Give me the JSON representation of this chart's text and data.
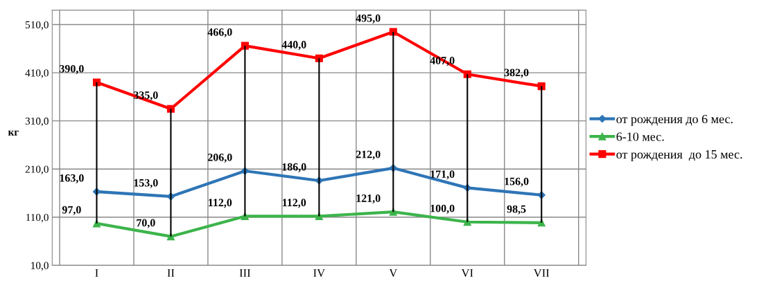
{
  "chart_data": {
    "type": "line",
    "ylabel": "кг",
    "categories": [
      "I",
      "II",
      "III",
      "IV",
      "V",
      "VI",
      "VII"
    ],
    "ylim": [
      10,
      540
    ],
    "yticks": [
      {
        "value": 10,
        "label": "10,0"
      },
      {
        "value": 110,
        "label": "110,0"
      },
      {
        "value": 210,
        "label": "210,0"
      },
      {
        "value": 310,
        "label": "310,0"
      },
      {
        "value": 410,
        "label": "410,0"
      },
      {
        "value": 510,
        "label": "510,0"
      }
    ],
    "grid": true,
    "legend": "right",
    "line_style": "solid",
    "series": [
      {
        "name": "от рождения до 6 мес.",
        "color": "#2e75b6",
        "marker": "diamond",
        "values": [
          163,
          153,
          206,
          186,
          212,
          171,
          156
        ],
        "value_labels": [
          "163,0",
          "153,0",
          "206,0",
          "186,0",
          "212,0",
          "171,0",
          "156,0"
        ]
      },
      {
        "name": "6-10 мес.",
        "color": "#3cb44b",
        "marker": "triangle",
        "values": [
          97,
          70,
          112,
          112,
          121,
          100,
          98.5
        ],
        "value_labels": [
          "97,0",
          "70,0",
          "112,0",
          "112,0",
          "121,0",
          "100,0",
          "98,5"
        ]
      },
      {
        "name": "от рождения  до 15 мес.",
        "color": "#ff0000",
        "marker": "square",
        "values": [
          390,
          335,
          466,
          440,
          495,
          407,
          382
        ],
        "errors": [
          [
            97,
            390
          ],
          [
            70,
            335
          ],
          [
            112,
            466
          ],
          [
            112,
            440
          ],
          [
            121,
            495
          ],
          [
            100,
            407
          ],
          [
            98.5,
            382
          ]
        ],
        "value_labels": [
          "390,0",
          "335,0",
          "466,0",
          "440,0",
          "495,0",
          "407,0",
          "382,0"
        ]
      }
    ]
  }
}
